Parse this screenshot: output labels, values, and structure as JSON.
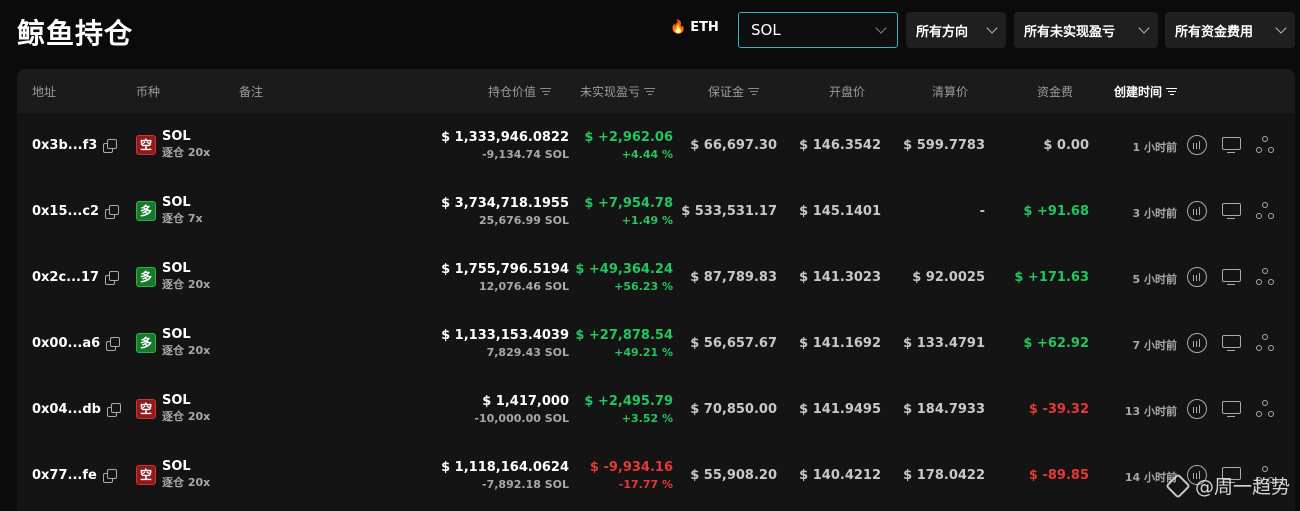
{
  "page_title": "鲸鱼持仓",
  "toolbar": {
    "eth_label": "ETH",
    "coin_select_value": "SOL",
    "direction_filter": "所有方向",
    "pnl_filter": "所有未实现盈亏",
    "funding_filter": "所有资金费用"
  },
  "columns": {
    "address": "地址",
    "coin": "币种",
    "note": "备注",
    "position_value": "持仓价值",
    "unrealized_pnl": "未实现盈亏",
    "margin": "保证金",
    "entry_price": "开盘价",
    "liq_price": "清算价",
    "funding": "资金费",
    "created": "创建时间"
  },
  "rows": [
    {
      "address": "0x3b...f3",
      "side": "空",
      "side_type": "short",
      "coin": "SOL",
      "leverage": "逐仓 20x",
      "value": "$ 1,333,946.0822",
      "size": "-9,134.74 SOL",
      "pnl": "$ +2,962.06",
      "pnl_pct": "+4.44 %",
      "pnl_sign": "pos",
      "margin": "$ 66,697.30",
      "entry": "$ 146.3542",
      "liq": "$ 599.7783",
      "funding": "$ 0.00",
      "funding_sign": "zero",
      "time": "1 小时前"
    },
    {
      "address": "0x15...c2",
      "side": "多",
      "side_type": "long",
      "coin": "SOL",
      "leverage": "逐仓 7x",
      "value": "$ 3,734,718.1955",
      "size": "25,676.99 SOL",
      "pnl": "$ +7,954.78",
      "pnl_pct": "+1.49 %",
      "pnl_sign": "pos",
      "margin": "$ 533,531.17",
      "entry": "$ 145.1401",
      "liq": "-",
      "funding": "$ +91.68",
      "funding_sign": "pos",
      "time": "3 小时前"
    },
    {
      "address": "0x2c...17",
      "side": "多",
      "side_type": "long",
      "coin": "SOL",
      "leverage": "逐仓 20x",
      "value": "$ 1,755,796.5194",
      "size": "12,076.46 SOL",
      "pnl": "$ +49,364.24",
      "pnl_pct": "+56.23 %",
      "pnl_sign": "pos",
      "margin": "$ 87,789.83",
      "entry": "$ 141.3023",
      "liq": "$ 92.0025",
      "funding": "$ +171.63",
      "funding_sign": "pos",
      "time": "5 小时前"
    },
    {
      "address": "0x00...a6",
      "side": "多",
      "side_type": "long",
      "coin": "SOL",
      "leverage": "逐仓 20x",
      "value": "$ 1,133,153.4039",
      "size": "7,829.43 SOL",
      "pnl": "$ +27,878.54",
      "pnl_pct": "+49.21 %",
      "pnl_sign": "pos",
      "margin": "$ 56,657.67",
      "entry": "$ 141.1692",
      "liq": "$ 133.4791",
      "funding": "$ +62.92",
      "funding_sign": "pos",
      "time": "7 小时前"
    },
    {
      "address": "0x04...db",
      "side": "空",
      "side_type": "short",
      "coin": "SOL",
      "leverage": "逐仓 20x",
      "value": "$ 1,417,000",
      "size": "-10,000.00 SOL",
      "pnl": "$ +2,495.79",
      "pnl_pct": "+3.52 %",
      "pnl_sign": "pos",
      "margin": "$ 70,850.00",
      "entry": "$ 141.9495",
      "liq": "$ 184.7933",
      "funding": "$ -39.32",
      "funding_sign": "neg",
      "time": "13 小时前"
    },
    {
      "address": "0x77...fe",
      "side": "空",
      "side_type": "short",
      "coin": "SOL",
      "leverage": "逐仓 20x",
      "value": "$ 1,118,164.0624",
      "size": "-7,892.18 SOL",
      "pnl": "$ -9,934.16",
      "pnl_pct": "-17.77 %",
      "pnl_sign": "neg",
      "margin": "$ 55,908.20",
      "entry": "$ 140.4212",
      "liq": "$ 178.0422",
      "funding": "$ -89.85",
      "funding_sign": "neg",
      "time": "14 小时前"
    }
  ],
  "watermark": "@周一趋势"
}
